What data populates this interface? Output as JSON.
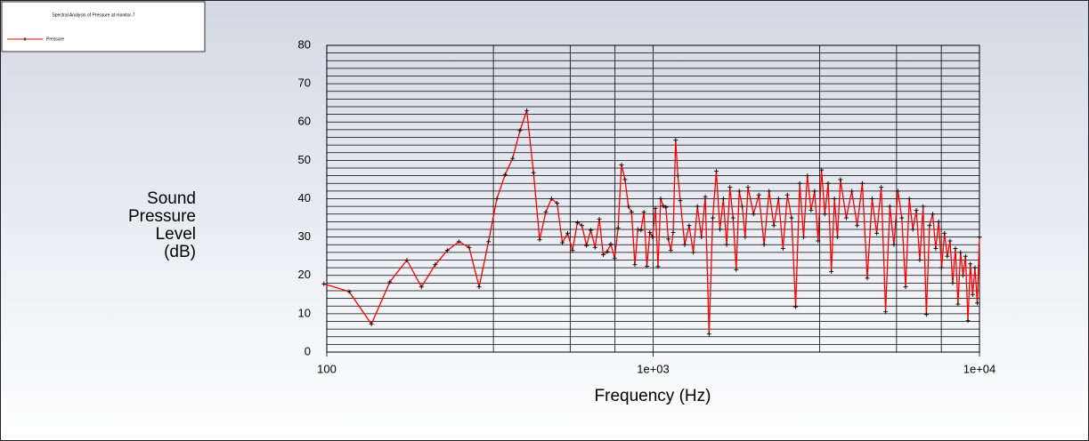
{
  "chart_data": {
    "type": "line",
    "title": "Spectral Analysis of Pressure at monitor-7",
    "x_label": "Frequency (Hz)",
    "y_label": [
      "Sound",
      "Pressure",
      "Level",
      "(dB)"
    ],
    "x_log": true,
    "xlim": [
      100,
      10000
    ],
    "ylim": [
      0,
      80
    ],
    "xticks": [
      {
        "value": 100,
        "label": "100"
      },
      {
        "value": 1000,
        "label": "1e+03"
      },
      {
        "value": 10000,
        "label": "1e+04"
      }
    ],
    "yticks": [
      0,
      10,
      20,
      30,
      40,
      50,
      60,
      70,
      80
    ],
    "x_minor_grid": [
      324,
      557,
      764,
      3240,
      5570,
      7640
    ],
    "y_minor_grid": [
      2,
      4,
      6,
      8,
      12,
      14,
      16,
      18,
      22,
      24,
      26,
      28,
      32,
      34,
      36,
      38,
      42,
      44,
      46,
      48,
      52,
      54,
      56,
      58,
      62,
      64,
      66,
      68,
      72,
      74,
      76,
      78
    ],
    "grid": true,
    "legend": "top-left",
    "x": [
      98,
      117,
      137,
      156,
      176,
      195,
      215,
      234,
      254,
      273,
      293,
      313,
      332,
      352,
      371,
      391,
      410,
      430,
      449,
      469,
      488,
      508,
      527,
      547,
      566,
      586,
      605,
      625,
      644,
      664,
      684,
      703,
      723,
      742,
      762,
      781,
      800,
      820,
      840,
      859,
      879,
      898,
      918,
      937,
      957,
      977,
      996,
      1016,
      1035,
      1055,
      1074,
      1094,
      1113,
      1133,
      1152,
      1172,
      1191,
      1211,
      1250,
      1289,
      1328,
      1367,
      1406,
      1445,
      1484,
      1523,
      1562,
      1602,
      1641,
      1680,
      1719,
      1758,
      1797,
      1836,
      1875,
      1914,
      1953,
      2031,
      2109,
      2188,
      2266,
      2344,
      2422,
      2500,
      2578,
      2656,
      2734,
      2813,
      2891,
      2969,
      3047,
      3125,
      3203,
      3281,
      3359,
      3438,
      3516,
      3594,
      3672,
      3750,
      3906,
      4063,
      4219,
      4375,
      4531,
      4688,
      4844,
      5000,
      5156,
      5313,
      5469,
      5625,
      5781,
      5938,
      6094,
      6250,
      6406,
      6563,
      6719,
      6875,
      7031,
      7188,
      7344,
      7500,
      7656,
      7813,
      7969,
      8125,
      8281,
      8438,
      8594,
      8750,
      8906,
      9063,
      9219,
      9375,
      9531,
      9688,
      9844,
      10000
    ],
    "series": [
      {
        "name": "Pressure",
        "color": "#ff0000",
        "marker_color": "#000000",
        "values": [
          17.8,
          15.8,
          7.3,
          18.3,
          24,
          17,
          22.8,
          26.5,
          28.8,
          27.3,
          17,
          28.8,
          40,
          46.3,
          50.5,
          57.8,
          63,
          46.8,
          29.3,
          36.5,
          40,
          38.8,
          28.5,
          31,
          26.5,
          33.8,
          33,
          27.8,
          31.8,
          27.3,
          34.7,
          25.4,
          26.2,
          28.2,
          24.5,
          32.4,
          48.8,
          45,
          38,
          36.5,
          22.8,
          32,
          31.8,
          36.5,
          22.4,
          31.2,
          30,
          37.5,
          22.3,
          40,
          38.1,
          37.8,
          29.5,
          26.5,
          31.2,
          55.3,
          46,
          39.5,
          28,
          33,
          26,
          38,
          30,
          40.5,
          4.7,
          35,
          47.2,
          32,
          40,
          28,
          43,
          35,
          21.5,
          42,
          38,
          30,
          43,
          36,
          41,
          28,
          42,
          33,
          40,
          27,
          41,
          35,
          11.8,
          44,
          30,
          46,
          37,
          42,
          29,
          47.5,
          36,
          44,
          21,
          40,
          30,
          45,
          35,
          42,
          33,
          44,
          19.3,
          40,
          31,
          43,
          10.5,
          38,
          28,
          42,
          35,
          17,
          40,
          32,
          37,
          24,
          38,
          9.8,
          33,
          36,
          27,
          34,
          22,
          31,
          25,
          29,
          18,
          27,
          12.5,
          26,
          20,
          25,
          8.2,
          23,
          15,
          22,
          12.8,
          30
        ]
      }
    ]
  }
}
